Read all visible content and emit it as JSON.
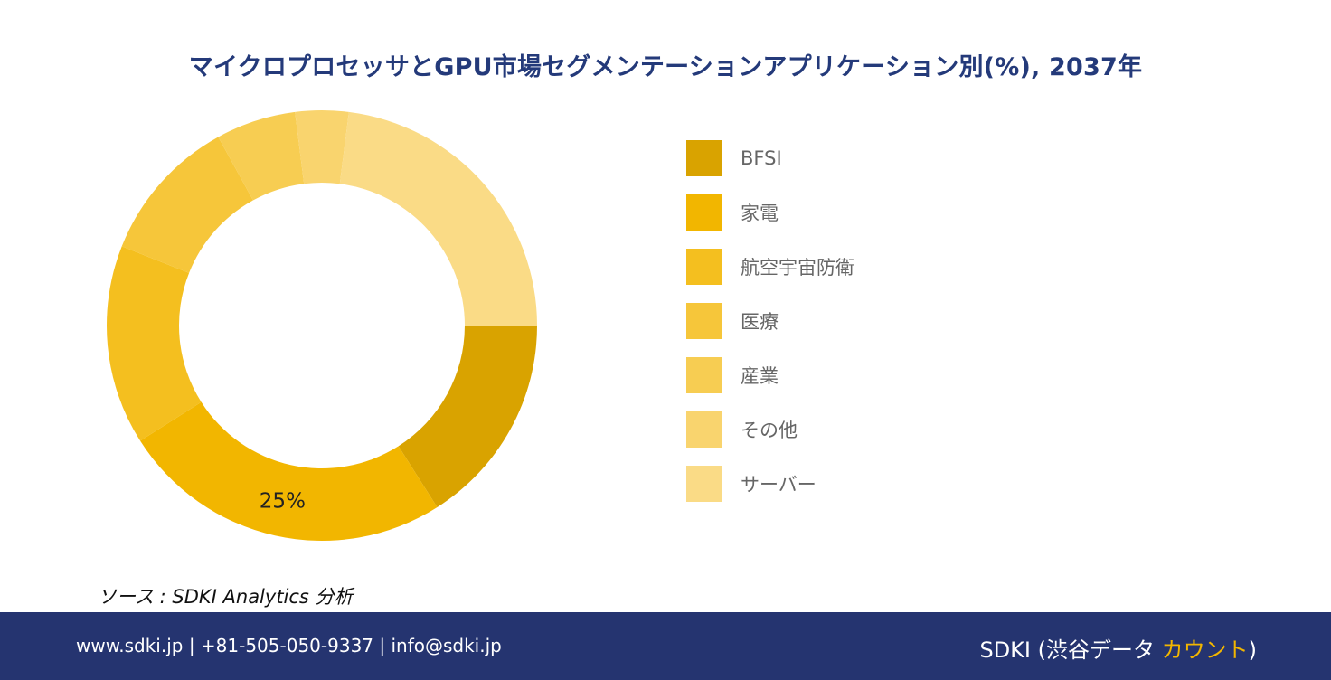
{
  "page": {
    "title": "マイクロプロセッサとGPU市場セグメンテーションアプリケーション別(%), 2037年",
    "source": "ソース : SDKI Analytics 分析"
  },
  "chart_data": {
    "type": "pie",
    "title": "マイクロプロセッサとGPU市場セグメンテーションアプリケーション別(%), 2037年",
    "legend_position": "right",
    "slices": [
      {
        "label": "BFSI",
        "value": 16,
        "color": "#d9a300",
        "data_label": ""
      },
      {
        "label": "家電",
        "value": 25,
        "color": "#f2b600",
        "data_label": "25%"
      },
      {
        "label": "航空宇宙防衛",
        "value": 15,
        "color": "#f4bf1f",
        "data_label": ""
      },
      {
        "label": "医療",
        "value": 11,
        "color": "#f6c63a",
        "data_label": ""
      },
      {
        "label": "産業",
        "value": 6,
        "color": "#f7cd52",
        "data_label": ""
      },
      {
        "label": "その他",
        "value": 4,
        "color": "#f9d46e",
        "data_label": ""
      },
      {
        "label": "サーバー",
        "value": 23,
        "color": "#fadb86",
        "data_label": ""
      }
    ]
  },
  "footer": {
    "contact": "www.sdki.jp | +81-505-050-9337 | info@sdki.jp",
    "brand_main": "SDKI (渋谷データ ",
    "brand_accent": "カウント",
    "brand_end": ")"
  },
  "colors": {
    "title": "#243a7a",
    "footer_bg": "#253470",
    "brand_accent": "#f2b600"
  }
}
